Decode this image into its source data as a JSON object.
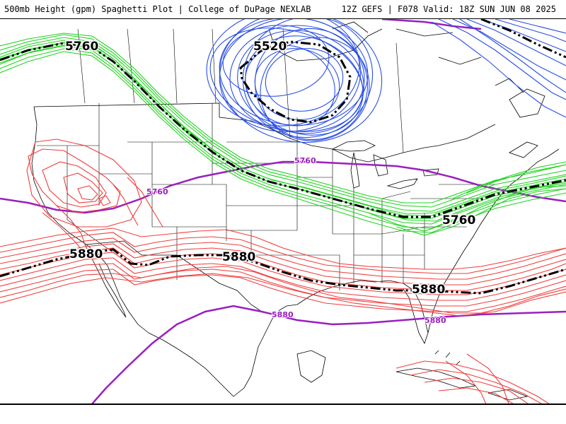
{
  "header": {
    "title_left": "500mb Height (gpm) Spaghetti Plot | College of DuPage NEXLAB",
    "title_right": "12Z GEFS | F078 Valid: 18Z SUN JUN 08 2025"
  },
  "contours": {
    "c5520": "5520",
    "c5760": "5760",
    "c5880": "5880"
  },
  "colors": {
    "c5520_members": "#2a4fe6",
    "c5760_members": "#1fd41f",
    "c5880_members": "#f03c3c",
    "climo": "#9a1fbf",
    "ensemble_mean": "#000000",
    "map_lines": "#000000"
  }
}
